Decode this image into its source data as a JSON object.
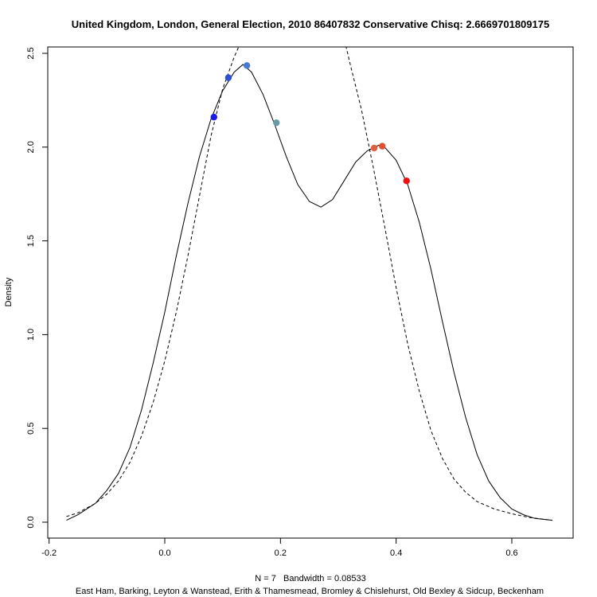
{
  "chart_data": {
    "type": "line",
    "title": "United Kingdom, London, General Election, 2010 86407832 Conservative Chisq: 2.6669701809175",
    "xlabel": "N = 7   Bandwidth = 0.08533",
    "sublabel": "East Ham, Barking, Leyton & Wanstead, Erith & Thamesmead, Bromley & Chislehurst, Old Bexley & Sidcup, Beckenham",
    "ylabel": "Density",
    "xlim": [
      -0.2,
      0.6
    ],
    "ylim": [
      0,
      2.5
    ],
    "x_ticks": [
      "-0.2",
      "0.0",
      "0.2",
      "0.4",
      "0.6"
    ],
    "y_ticks": [
      "0.0",
      "0.5",
      "1.0",
      "1.5",
      "2.0",
      "2.5"
    ],
    "n": 7,
    "bandwidth": 0.08533,
    "density_curve": {
      "style": "solid",
      "points": [
        [
          -0.17,
          0.01
        ],
        [
          -0.15,
          0.04
        ],
        [
          -0.12,
          0.1
        ],
        [
          -0.1,
          0.17
        ],
        [
          -0.08,
          0.26
        ],
        [
          -0.06,
          0.4
        ],
        [
          -0.04,
          0.6
        ],
        [
          -0.02,
          0.85
        ],
        [
          0.0,
          1.12
        ],
        [
          0.02,
          1.42
        ],
        [
          0.04,
          1.7
        ],
        [
          0.06,
          1.95
        ],
        [
          0.08,
          2.15
        ],
        [
          0.1,
          2.3
        ],
        [
          0.12,
          2.4
        ],
        [
          0.135,
          2.44
        ],
        [
          0.15,
          2.4
        ],
        [
          0.17,
          2.28
        ],
        [
          0.19,
          2.12
        ],
        [
          0.21,
          1.95
        ],
        [
          0.23,
          1.8
        ],
        [
          0.25,
          1.71
        ],
        [
          0.27,
          1.68
        ],
        [
          0.29,
          1.72
        ],
        [
          0.31,
          1.82
        ],
        [
          0.33,
          1.92
        ],
        [
          0.35,
          1.98
        ],
        [
          0.37,
          2.01
        ],
        [
          0.38,
          2.0
        ],
        [
          0.4,
          1.93
        ],
        [
          0.42,
          1.8
        ],
        [
          0.44,
          1.6
        ],
        [
          0.46,
          1.35
        ],
        [
          0.48,
          1.07
        ],
        [
          0.5,
          0.8
        ],
        [
          0.52,
          0.56
        ],
        [
          0.54,
          0.36
        ],
        [
          0.56,
          0.22
        ],
        [
          0.58,
          0.13
        ],
        [
          0.6,
          0.07
        ],
        [
          0.62,
          0.04
        ],
        [
          0.64,
          0.02
        ],
        [
          0.67,
          0.01
        ]
      ]
    },
    "normal_curve": {
      "style": "dashed",
      "points": [
        [
          -0.17,
          0.03
        ],
        [
          -0.15,
          0.05
        ],
        [
          -0.12,
          0.1
        ],
        [
          -0.1,
          0.15
        ],
        [
          -0.08,
          0.22
        ],
        [
          -0.06,
          0.32
        ],
        [
          -0.04,
          0.46
        ],
        [
          -0.02,
          0.64
        ],
        [
          0.0,
          0.86
        ],
        [
          0.02,
          1.12
        ],
        [
          0.04,
          1.42
        ],
        [
          0.06,
          1.74
        ],
        [
          0.08,
          2.06
        ],
        [
          0.1,
          2.31
        ],
        [
          0.12,
          2.48
        ],
        [
          0.14,
          2.62
        ],
        [
          0.16,
          2.8
        ],
        [
          0.2,
          3.2
        ],
        [
          0.3,
          3.2
        ],
        [
          0.31,
          2.58
        ],
        [
          0.32,
          2.45
        ],
        [
          0.34,
          2.2
        ],
        [
          0.36,
          1.9
        ],
        [
          0.38,
          1.58
        ],
        [
          0.4,
          1.25
        ],
        [
          0.42,
          0.95
        ],
        [
          0.44,
          0.7
        ],
        [
          0.46,
          0.49
        ],
        [
          0.48,
          0.34
        ],
        [
          0.5,
          0.23
        ],
        [
          0.52,
          0.16
        ],
        [
          0.54,
          0.11
        ],
        [
          0.57,
          0.07
        ],
        [
          0.6,
          0.045
        ],
        [
          0.63,
          0.025
        ],
        [
          0.67,
          0.01
        ]
      ]
    },
    "points": [
      {
        "x": 0.085,
        "y": 2.16,
        "color": "#1a1aee"
      },
      {
        "x": 0.11,
        "y": 2.37,
        "color": "#2a4fd6"
      },
      {
        "x": 0.142,
        "y": 2.435,
        "color": "#4a7ad0"
      },
      {
        "x": 0.193,
        "y": 2.13,
        "color": "#6a9aa6"
      },
      {
        "x": 0.362,
        "y": 1.995,
        "color": "#e06040"
      },
      {
        "x": 0.376,
        "y": 2.005,
        "color": "#e05030"
      },
      {
        "x": 0.418,
        "y": 1.82,
        "color": "#ee1010"
      }
    ]
  }
}
